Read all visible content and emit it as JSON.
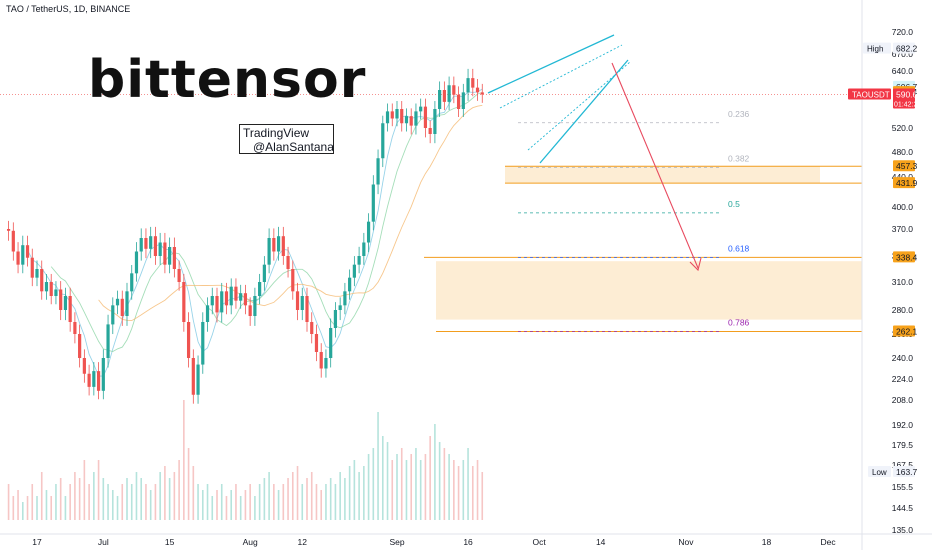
{
  "header": {
    "title": "TAO / TetherUS, 1D, BINANCE"
  },
  "logo": {
    "text": "bittensor"
  },
  "watermark": {
    "line1": "TradingView",
    "line2": "@AlanSantana"
  },
  "colors": {
    "up": "#26a69a",
    "down": "#ef5350",
    "fib_zone": "#fde9c9",
    "fib_line": "#f29d1e",
    "wedge": "#22b8d4",
    "arrow": "#e84a5f"
  },
  "chart_data": {
    "type": "candlestick",
    "y_ticks": [
      720.0,
      670.0,
      640.0,
      520.0,
      480.0,
      440.0,
      400.0,
      370.0,
      340.0,
      310.0,
      280.0,
      260.0,
      240.0,
      224.0,
      208.0,
      192.0,
      179.5,
      167.5,
      155.5,
      144.5,
      135.0
    ],
    "x_ticks": [
      {
        "label": "17",
        "date": "2024-06-17"
      },
      {
        "label": "Jul",
        "date": "2024-07-01"
      },
      {
        "label": "15",
        "date": "2024-07-15"
      },
      {
        "label": "Aug",
        "date": "2024-08-01"
      },
      {
        "label": "12",
        "date": "2024-08-12"
      },
      {
        "label": "Sep",
        "date": "2024-09-01"
      },
      {
        "label": "16",
        "date": "2024-09-16"
      },
      {
        "label": "Oct",
        "date": "2024-10-01"
      },
      {
        "label": "14",
        "date": "2024-10-14"
      },
      {
        "label": "Nov",
        "date": "2024-11-01"
      },
      {
        "label": "18",
        "date": "2024-11-18"
      },
      {
        "label": "Dec",
        "date": "2024-12-01"
      }
    ],
    "start_date": "2024-06-11",
    "candles": [
      [
        370,
        368
      ],
      [
        368,
        345
      ],
      [
        345,
        330
      ],
      [
        330,
        352
      ],
      [
        352,
        338
      ],
      [
        338,
        315
      ],
      [
        315,
        325
      ],
      [
        325,
        300
      ],
      [
        300,
        310
      ],
      [
        310,
        295
      ],
      [
        295,
        302
      ],
      [
        302,
        280
      ],
      [
        280,
        295
      ],
      [
        295,
        270
      ],
      [
        270,
        260
      ],
      [
        260,
        240
      ],
      [
        240,
        228
      ],
      [
        228,
        218
      ],
      [
        218,
        230
      ],
      [
        230,
        215
      ],
      [
        215,
        240
      ],
      [
        240,
        268
      ],
      [
        268,
        285
      ],
      [
        285,
        292
      ],
      [
        292,
        275
      ],
      [
        275,
        300
      ],
      [
        300,
        320
      ],
      [
        320,
        345
      ],
      [
        345,
        360
      ],
      [
        360,
        348
      ],
      [
        348,
        362
      ],
      [
        362,
        340
      ],
      [
        340,
        355
      ],
      [
        355,
        330
      ],
      [
        330,
        350
      ],
      [
        350,
        325
      ],
      [
        325,
        310
      ],
      [
        310,
        270
      ],
      [
        270,
        240
      ],
      [
        240,
        212
      ],
      [
        212,
        235
      ],
      [
        235,
        270
      ],
      [
        270,
        285
      ],
      [
        285,
        295
      ],
      [
        295,
        278
      ],
      [
        278,
        300
      ],
      [
        300,
        285
      ],
      [
        285,
        305
      ],
      [
        305,
        290
      ],
      [
        290,
        298
      ],
      [
        298,
        285
      ],
      [
        285,
        275
      ],
      [
        275,
        295
      ],
      [
        295,
        310
      ],
      [
        310,
        330
      ],
      [
        330,
        360
      ],
      [
        360,
        345
      ],
      [
        345,
        362
      ],
      [
        362,
        340
      ],
      [
        340,
        325
      ],
      [
        325,
        300
      ],
      [
        300,
        280
      ],
      [
        280,
        295
      ],
      [
        295,
        270
      ],
      [
        270,
        260
      ],
      [
        260,
        245
      ],
      [
        245,
        232
      ],
      [
        232,
        240
      ],
      [
        240,
        265
      ],
      [
        265,
        280
      ],
      [
        280,
        285
      ],
      [
        285,
        300
      ],
      [
        300,
        315
      ],
      [
        315,
        330
      ],
      [
        330,
        340
      ],
      [
        340,
        355
      ],
      [
        355,
        380
      ],
      [
        380,
        430
      ],
      [
        430,
        470
      ],
      [
        470,
        530
      ],
      [
        530,
        555
      ],
      [
        555,
        540
      ],
      [
        540,
        560
      ],
      [
        560,
        530
      ],
      [
        530,
        545
      ],
      [
        545,
        525
      ],
      [
        525,
        555
      ],
      [
        555,
        565
      ],
      [
        565,
        520
      ],
      [
        520,
        510
      ],
      [
        510,
        560
      ],
      [
        560,
        600
      ],
      [
        600,
        575
      ],
      [
        575,
        610
      ],
      [
        610,
        590
      ],
      [
        590,
        560
      ],
      [
        560,
        595
      ],
      [
        595,
        625
      ],
      [
        625,
        605
      ],
      [
        605,
        595
      ],
      [
        595,
        590.6
      ]
    ],
    "volumes_relative": [
      0.3,
      0.2,
      0.25,
      0.15,
      0.2,
      0.3,
      0.2,
      0.4,
      0.25,
      0.2,
      0.3,
      0.35,
      0.2,
      0.3,
      0.4,
      0.35,
      0.5,
      0.3,
      0.4,
      0.5,
      0.35,
      0.3,
      0.25,
      0.2,
      0.3,
      0.35,
      0.3,
      0.4,
      0.35,
      0.3,
      0.25,
      0.3,
      0.4,
      0.45,
      0.35,
      0.4,
      0.5,
      1.0,
      0.6,
      0.45,
      0.3,
      0.25,
      0.3,
      0.2,
      0.25,
      0.3,
      0.2,
      0.25,
      0.3,
      0.2,
      0.25,
      0.3,
      0.2,
      0.3,
      0.35,
      0.4,
      0.3,
      0.25,
      0.3,
      0.35,
      0.4,
      0.45,
      0.3,
      0.35,
      0.4,
      0.3,
      0.25,
      0.3,
      0.35,
      0.3,
      0.4,
      0.35,
      0.45,
      0.5,
      0.4,
      0.45,
      0.55,
      0.6,
      0.9,
      0.7,
      0.65,
      0.5,
      0.55,
      0.6,
      0.5,
      0.55,
      0.6,
      0.5,
      0.55,
      0.7,
      0.8,
      0.65,
      0.6,
      0.55,
      0.5,
      0.45,
      0.5,
      0.6,
      0.45,
      0.5,
      0.4
    ],
    "price_badges": [
      {
        "label": "High",
        "value": "682.2",
        "price": 682.2,
        "kind": "grey"
      },
      {
        "label": "",
        "value": "606.7",
        "price": 606.7,
        "kind": "cyan"
      },
      {
        "label": "",
        "value": "595.4",
        "price": 595.4,
        "kind": "orange"
      },
      {
        "label": "TAOUSDT",
        "value": "590.6",
        "sub": "01:42:25",
        "price": 590.6,
        "kind": "red"
      },
      {
        "label": "",
        "value": "457.3",
        "price": 457.3,
        "kind": "orange"
      },
      {
        "label": "",
        "value": "431.9",
        "price": 431.9,
        "kind": "orange"
      },
      {
        "label": "",
        "value": "338.4",
        "price": 338.4,
        "kind": "orange"
      },
      {
        "label": "",
        "value": "262.1",
        "price": 262.1,
        "kind": "orange"
      },
      {
        "label": "Low",
        "value": "163.7",
        "price": 163.7,
        "kind": "grey"
      }
    ],
    "fib_levels": [
      {
        "label": "0.236",
        "price": 531,
        "color": "#b2b5be"
      },
      {
        "label": "0.382",
        "price": 455,
        "color": "#b2b5be"
      },
      {
        "label": "0.5",
        "price": 392,
        "color": "#26a69a"
      },
      {
        "label": "0.618",
        "price": 338.4,
        "color": "#2962ff"
      },
      {
        "label": "0.786",
        "price": 262.1,
        "color": "#9c27b0"
      }
    ]
  }
}
